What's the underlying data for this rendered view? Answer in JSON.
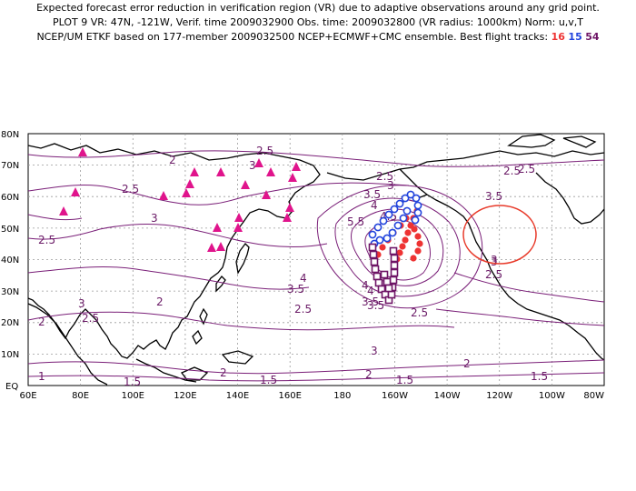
{
  "header": {
    "line1": "Expected forecast error reduction in verification region (VR) due to adaptive observations around any grid point.",
    "line2": "PLOT 9 VR: 47N, -121W, Verif. time 2009032900 Obs. time: 2009032800 (VR radius: 1000km) Norm: u,v,T",
    "line3_prefix": "NCEP/UM ETKF based on 177-member 2009032500 NCEP+ECMWF+CMC ensemble. Best flight tracks:",
    "track_a": "16",
    "track_b": "15",
    "track_c": "54"
  },
  "colors": {
    "contour": "#7a1f78",
    "track_a": "#ee3333",
    "track_b": "#2244dd",
    "track_c": "#6e1566",
    "triangles": "#e0148c",
    "vr_circle": "#e83a2a",
    "grid": "#999999",
    "coast": "#000000"
  },
  "axes": {
    "lat_labels": [
      "80N",
      "70N",
      "60N",
      "50N",
      "40N",
      "30N",
      "20N",
      "10N",
      "EQ"
    ],
    "lon_labels": [
      "60E",
      "80E",
      "100E",
      "120E",
      "140E",
      "160E",
      "180",
      "160W",
      "140W",
      "120W",
      "100W",
      "80W"
    ]
  },
  "contour_labels": [
    "2",
    "2.5",
    "2.5",
    "2.5",
    "2.5",
    "3",
    "3",
    "3.5",
    "3.5",
    "4",
    "4",
    "5.5",
    "2.5",
    "3",
    "3.5",
    "4",
    "4.5",
    "2.5",
    "3",
    "3.5",
    "2",
    "2.5",
    "2",
    "3",
    "2.5",
    "3",
    "1",
    "1.5",
    "2",
    "1.5",
    "2",
    "1.5",
    "2",
    "1.5",
    "2.5",
    "3",
    "4",
    "3.5",
    "2.5"
  ]
}
